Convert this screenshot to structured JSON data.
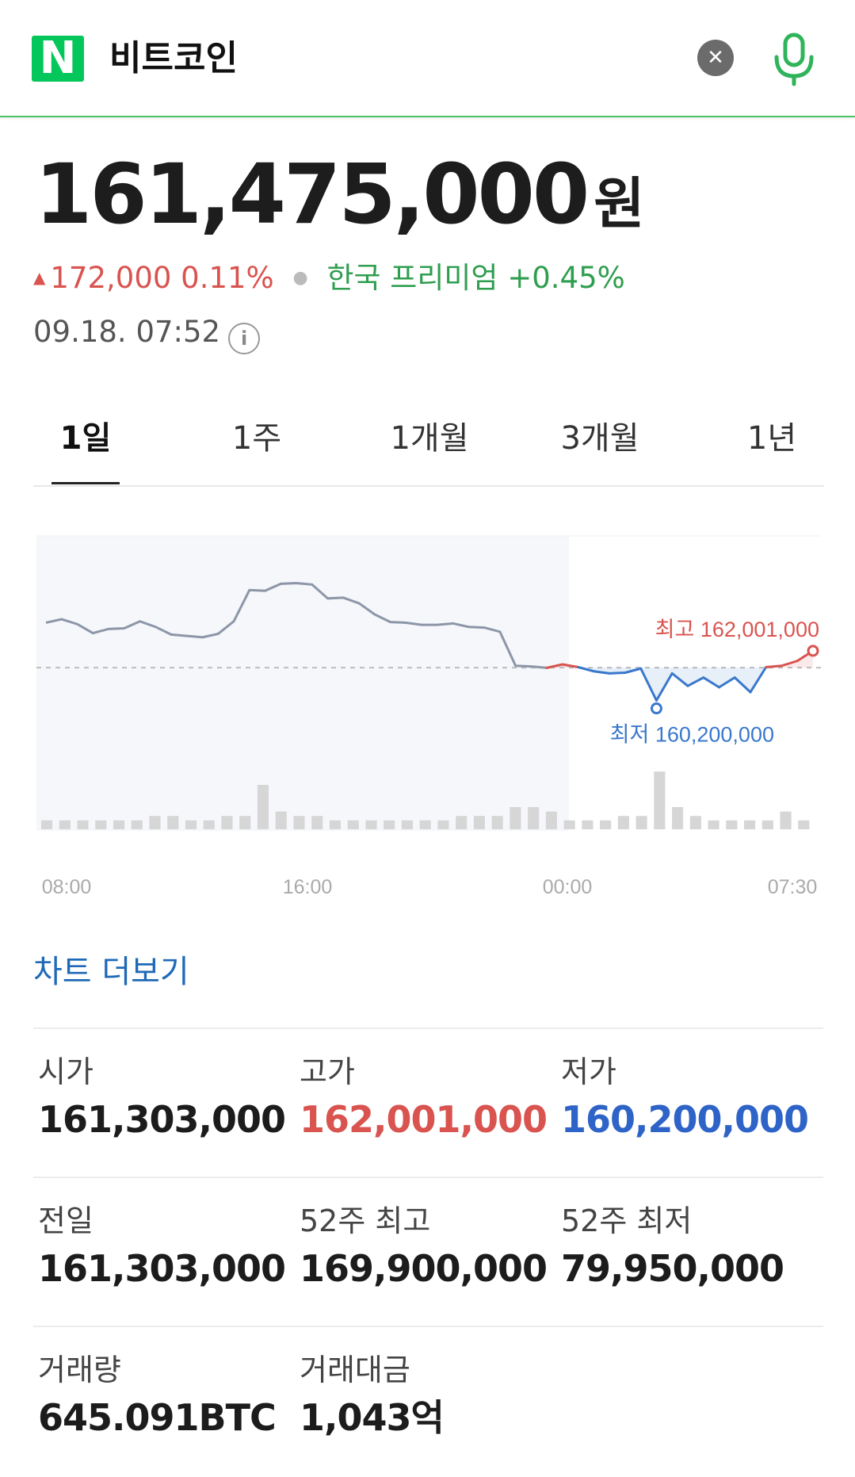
{
  "search": {
    "logo": "N",
    "query": "비트코인",
    "clear_icon": "close-icon",
    "mic_icon": "mic-icon"
  },
  "quote": {
    "price": "161,475,000",
    "unit": "원",
    "change": "172,000",
    "change_pct": "0.11%",
    "premium_label": "한국 프리미엄",
    "premium_value": "+0.45%",
    "timestamp": "09.18. 07:52"
  },
  "tabs": [
    {
      "label": "1일",
      "active": true
    },
    {
      "label": "1주"
    },
    {
      "label": "1개월"
    },
    {
      "label": "3개월"
    },
    {
      "label": "1년"
    }
  ],
  "chart_data": {
    "type": "line",
    "x_tick_labels": [
      "08:00",
      "16:00",
      "00:00",
      "07:30"
    ],
    "reference_line": 161303000,
    "ylim": [
      159500000,
      163200000
    ],
    "colors": {
      "history": "#8d96a8",
      "above": "#d9534f",
      "below": "#3a78cc",
      "volume": "#d6d6d6"
    },
    "series": [
      {
        "x": [
          0,
          0.5,
          1,
          1.5,
          2,
          2.5,
          3,
          3.5,
          4,
          4.5,
          5,
          5.5,
          6,
          6.5,
          7,
          7.5,
          8,
          8.5,
          9,
          9.5,
          10,
          10.5,
          11,
          11.5,
          12,
          12.5,
          13,
          13.5,
          14,
          14.5,
          15,
          15.5,
          16,
          16.5,
          17,
          17.5,
          18,
          18.5,
          19,
          19.5,
          20,
          20.5,
          21,
          21.5,
          22,
          22.5,
          23,
          23.5,
          24,
          24.5
        ],
        "values": [
          161950000,
          162000000,
          161930000,
          161800000,
          161860000,
          161870000,
          161970000,
          161890000,
          161780000,
          161760000,
          161740000,
          161790000,
          161970000,
          162420000,
          162410000,
          162510000,
          162520000,
          162500000,
          162300000,
          162310000,
          162230000,
          162070000,
          161960000,
          161950000,
          161920000,
          161920000,
          161940000,
          161890000,
          161880000,
          161820000,
          161330000,
          161320000,
          161300000,
          161350000,
          161310000,
          161250000,
          161220000,
          161230000,
          161290000,
          160830000,
          161220000,
          161040000,
          161160000,
          161020000,
          161160000,
          160950000,
          161310000,
          161330000,
          161400000,
          161545000
        ]
      }
    ],
    "extremes": {
      "high_label": "최고",
      "high_value": "162,001,000",
      "low_label": "최저",
      "low_value": "160,200,000"
    },
    "volume": [
      2,
      2,
      2,
      2,
      2,
      2,
      3,
      3,
      2,
      2,
      3,
      3,
      10,
      4,
      3,
      3,
      2,
      2,
      2,
      2,
      2,
      2,
      2,
      3,
      3,
      3,
      5,
      5,
      4,
      2,
      2,
      2,
      3,
      3,
      13,
      5,
      3,
      2,
      2,
      2,
      2,
      4,
      2
    ]
  },
  "more_chart_label": "차트 더보기",
  "stats": [
    {
      "label": "시가",
      "value": "161,303,000",
      "tone": "normal"
    },
    {
      "label": "고가",
      "value": "162,001,000",
      "tone": "red"
    },
    {
      "label": "저가",
      "value": "160,200,000",
      "tone": "blue"
    },
    {
      "label": "전일",
      "value": "161,303,000",
      "tone": "normal"
    },
    {
      "label": "52주 최고",
      "value": "169,900,000",
      "tone": "normal"
    },
    {
      "label": "52주 최저",
      "value": "79,950,000",
      "tone": "normal"
    },
    {
      "label": "거래량",
      "value": "645.091BTC",
      "tone": "normal"
    },
    {
      "label": "거래대금",
      "value": "1,043억",
      "tone": "normal"
    }
  ]
}
